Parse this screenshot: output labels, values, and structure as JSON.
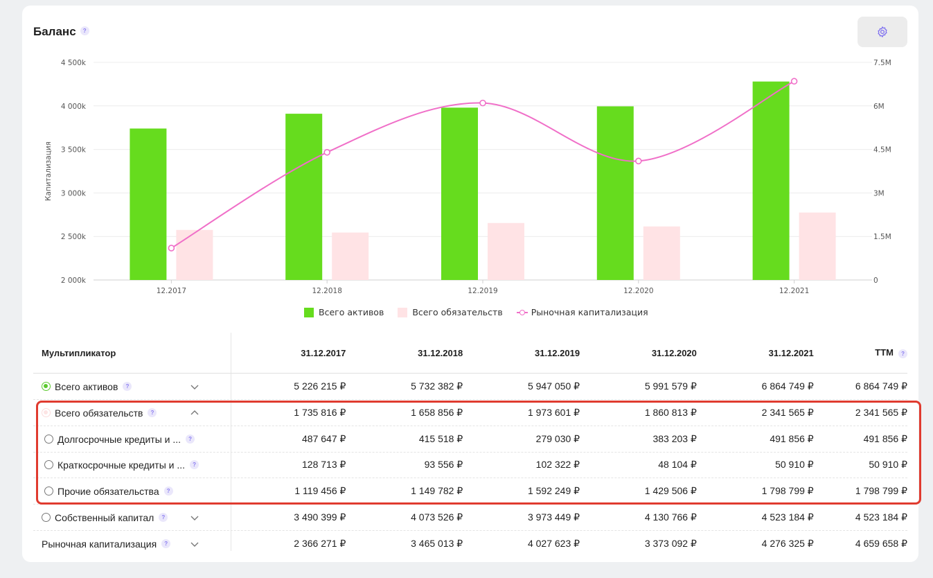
{
  "widget": {
    "title": "Баланс",
    "help_glyph": "?",
    "settings_icon": "gear-icon"
  },
  "colors": {
    "assets": "#66dc1e",
    "liabilities": "#ffe3e5",
    "market_cap": "#f06fc8",
    "highlight": "#e03b2f"
  },
  "chart_data": {
    "type": "bar",
    "categories": [
      "12.2017",
      "12.2018",
      "12.2019",
      "12.2020",
      "12.2021"
    ],
    "ylabel": "Капитализация",
    "ylim": [
      2000,
      4500
    ],
    "y_ticks": [
      "4 500k",
      "4 000k",
      "3 500k",
      "3 000k",
      "2 500k",
      "2 000k"
    ],
    "y_tick_values": [
      4500,
      4000,
      3500,
      3000,
      2500,
      2000
    ],
    "y2lim": [
      0,
      7.5
    ],
    "y2_ticks": [
      "7.5M",
      "6M",
      "4.5M",
      "3M",
      "1.5M",
      "0"
    ],
    "y2_tick_values": [
      7.5,
      6,
      4.5,
      3,
      1.5,
      0
    ],
    "grid": true,
    "legend_position": "bottom",
    "series": [
      {
        "name": "Всего активов",
        "axis": "left",
        "type": "bar",
        "values": [
          3740,
          3910,
          3980,
          3995,
          4280
        ]
      },
      {
        "name": "Всего обязательств",
        "axis": "left",
        "type": "bar",
        "values": [
          2575,
          2545,
          2655,
          2615,
          2775
        ]
      },
      {
        "name": "Рыночная капитализация",
        "axis": "right",
        "type": "line",
        "values": [
          1.1,
          4.4,
          6.1,
          4.1,
          6.85
        ]
      }
    ]
  },
  "table": {
    "header": {
      "label": "Мультипликатор",
      "columns": [
        "31.12.2017",
        "31.12.2018",
        "31.12.2019",
        "31.12.2020",
        "31.12.2021",
        "TTM"
      ]
    },
    "rows": [
      {
        "label": "Всего активов",
        "values": [
          "5 226 215 ₽",
          "5 732 382 ₽",
          "5 947 050 ₽",
          "5 991 579 ₽",
          "6 864 749 ₽",
          "6 864 749 ₽"
        ]
      },
      {
        "label": "Всего обязательств",
        "values": [
          "1 735 816 ₽",
          "1 658 856 ₽",
          "1 973 601 ₽",
          "1 860 813 ₽",
          "2 341 565 ₽",
          "2 341 565 ₽"
        ]
      },
      {
        "label": "Долгосрочные кредиты и ...",
        "values": [
          "487 647 ₽",
          "415 518 ₽",
          "279 030 ₽",
          "383 203 ₽",
          "491 856 ₽",
          "491 856 ₽"
        ]
      },
      {
        "label": "Краткосрочные кредиты и ...",
        "values": [
          "128 713 ₽",
          "93 556 ₽",
          "102 322 ₽",
          "48 104 ₽",
          "50 910 ₽",
          "50 910 ₽"
        ]
      },
      {
        "label": "Прочие обязательства",
        "values": [
          "1 119 456 ₽",
          "1 149 782 ₽",
          "1 592 249 ₽",
          "1 429 506 ₽",
          "1 798 799 ₽",
          "1 798 799 ₽"
        ]
      },
      {
        "label": "Собственный капитал",
        "values": [
          "3 490 399 ₽",
          "4 073 526 ₽",
          "3 973 449 ₽",
          "4 130 766 ₽",
          "4 523 184 ₽",
          "4 523 184 ₽"
        ]
      },
      {
        "label": "Рыночная капитализация",
        "values": [
          "2 366 271 ₽",
          "3 465 013 ₽",
          "4 027 623 ₽",
          "3 373 092 ₽",
          "4 276 325 ₽",
          "4 659 658 ₽"
        ]
      }
    ]
  }
}
